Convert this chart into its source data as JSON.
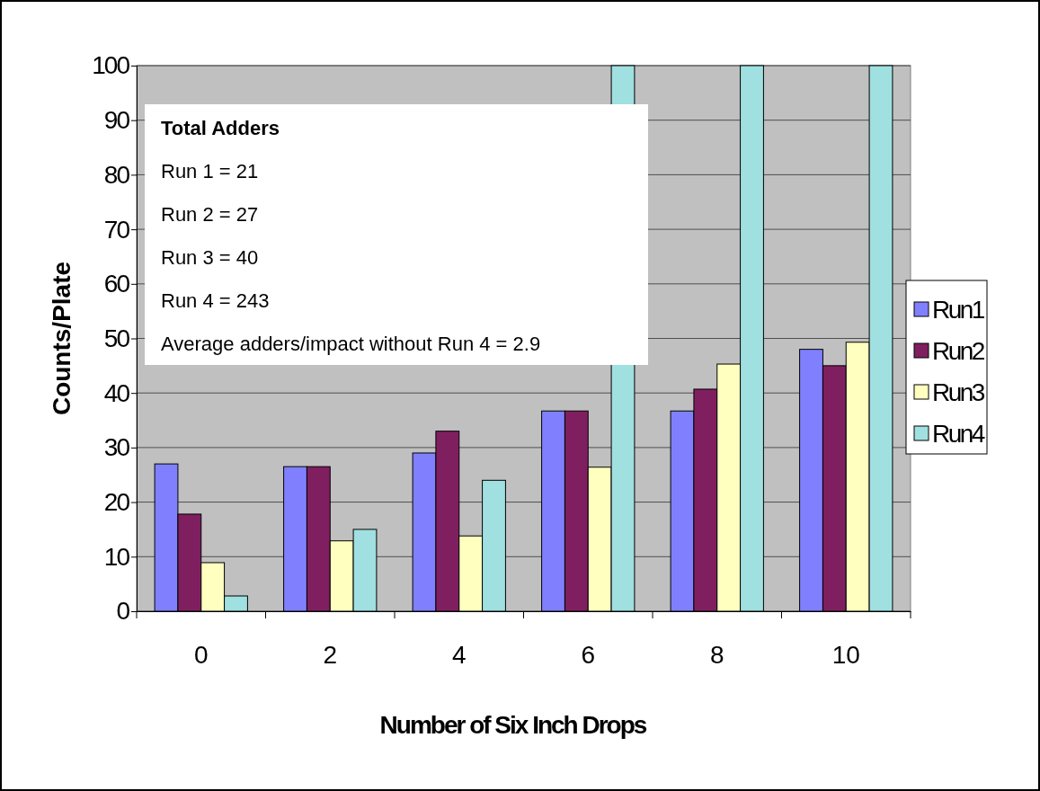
{
  "chart_data": {
    "type": "bar",
    "xlabel": "Number of Six Inch Drops",
    "ylabel": "Counts/Plate",
    "categories": [
      "0",
      "2",
      "4",
      "6",
      "8",
      "10"
    ],
    "series": [
      {
        "name": "Run1",
        "color": "#8080ff",
        "values": [
          27,
          26.5,
          29,
          36.7,
          36.7,
          48
        ]
      },
      {
        "name": "Run2",
        "color": "#801f60",
        "values": [
          17.8,
          26.5,
          33,
          36.7,
          40.7,
          45
        ]
      },
      {
        "name": "Run3",
        "color": "#ffffc0",
        "values": [
          8.9,
          12.9,
          13.8,
          26.4,
          45.3,
          49.3
        ]
      },
      {
        "name": "Run4",
        "color": "#a0e0e0",
        "values": [
          2.8,
          15,
          24,
          100,
          100,
          100
        ]
      }
    ],
    "ylim": [
      0,
      100
    ],
    "yticks": [
      0,
      10,
      20,
      30,
      40,
      50,
      60,
      70,
      80,
      90,
      100
    ],
    "grid": "y",
    "legend": "right",
    "annotations": [
      "Total Adders",
      "Run 1 = 21",
      "Run 2 = 27",
      "Run 3 = 40",
      "Run 4 = 243",
      "Average adders/impact without Run 4 = 2.9"
    ]
  }
}
